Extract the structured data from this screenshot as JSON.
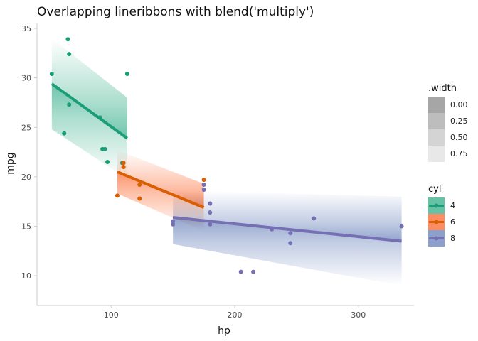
{
  "chart_data": {
    "type": "line",
    "title": "Overlapping lineribbons with blend('multiply')",
    "xlabel": "hp",
    "ylabel": "mpg",
    "xlim": [
      40,
      345
    ],
    "ylim": [
      7,
      35.5
    ],
    "x_ticks": [
      100,
      200,
      300
    ],
    "y_ticks": [
      10,
      15,
      20,
      25,
      30,
      35
    ],
    "grid": false,
    "legend_placement": "right",
    "width_legend": {
      "title": ".width",
      "entries": [
        {
          "label": "0.00",
          "color": "#a6a6a6"
        },
        {
          "label": "0.25",
          "color": "#bdbdbd"
        },
        {
          "label": "0.50",
          "color": "#d4d4d4"
        },
        {
          "label": "0.75",
          "color": "#e8e8e8"
        }
      ]
    },
    "group_legend": {
      "title": "cyl",
      "entries": [
        {
          "label": "4",
          "color": "#1b9e77",
          "fill": "#66c2a5"
        },
        {
          "label": "6",
          "color": "#d95f02",
          "fill": "#fc8d62"
        },
        {
          "label": "8",
          "color": "#7570b3",
          "fill": "#8da0cb"
        }
      ]
    },
    "series": [
      {
        "name": "4",
        "color": "#1b9e77",
        "line": {
          "x": [
            52,
            113
          ],
          "y": [
            29.4,
            23.9
          ]
        },
        "ribbon": {
          "x": [
            52,
            113
          ],
          "ymin": [
            24.8,
            19.8
          ],
          "ymax": [
            34.0,
            28.0
          ]
        },
        "points": [
          {
            "x": 93,
            "y": 22.8
          },
          {
            "x": 62,
            "y": 24.4
          },
          {
            "x": 95,
            "y": 22.8
          },
          {
            "x": 66,
            "y": 32.4
          },
          {
            "x": 52,
            "y": 30.4
          },
          {
            "x": 65,
            "y": 33.9
          },
          {
            "x": 97,
            "y": 21.5
          },
          {
            "x": 66,
            "y": 27.3
          },
          {
            "x": 91,
            "y": 26.0
          },
          {
            "x": 113,
            "y": 30.4
          },
          {
            "x": 109,
            "y": 21.4
          }
        ]
      },
      {
        "name": "6",
        "color": "#d95f02",
        "line": {
          "x": [
            105,
            175
          ],
          "y": [
            20.5,
            16.9
          ]
        },
        "ribbon": {
          "x": [
            105,
            175
          ],
          "ymin": [
            18.3,
            14.5
          ],
          "ymax": [
            22.7,
            19.3
          ]
        },
        "points": [
          {
            "x": 110,
            "y": 21.0
          },
          {
            "x": 110,
            "y": 21.0
          },
          {
            "x": 110,
            "y": 21.4
          },
          {
            "x": 105,
            "y": 18.1
          },
          {
            "x": 123,
            "y": 19.2
          },
          {
            "x": 123,
            "y": 17.8
          },
          {
            "x": 175,
            "y": 19.7
          }
        ]
      },
      {
        "name": "8",
        "color": "#7570b3",
        "line": {
          "x": [
            150,
            335
          ],
          "y": [
            15.9,
            13.5
          ]
        },
        "ribbon": {
          "x": [
            150,
            335
          ],
          "ymin": [
            13.2,
            9.0
          ],
          "ymax": [
            18.6,
            18.0
          ]
        },
        "points": [
          {
            "x": 175,
            "y": 18.7
          },
          {
            "x": 245,
            "y": 14.3
          },
          {
            "x": 180,
            "y": 16.4
          },
          {
            "x": 180,
            "y": 17.3
          },
          {
            "x": 180,
            "y": 15.2
          },
          {
            "x": 205,
            "y": 10.4
          },
          {
            "x": 215,
            "y": 10.4
          },
          {
            "x": 230,
            "y": 14.7
          },
          {
            "x": 150,
            "y": 15.5
          },
          {
            "x": 150,
            "y": 15.2
          },
          {
            "x": 245,
            "y": 13.3
          },
          {
            "x": 175,
            "y": 19.2
          },
          {
            "x": 264,
            "y": 15.8
          },
          {
            "x": 335,
            "y": 15.0
          }
        ]
      }
    ]
  }
}
